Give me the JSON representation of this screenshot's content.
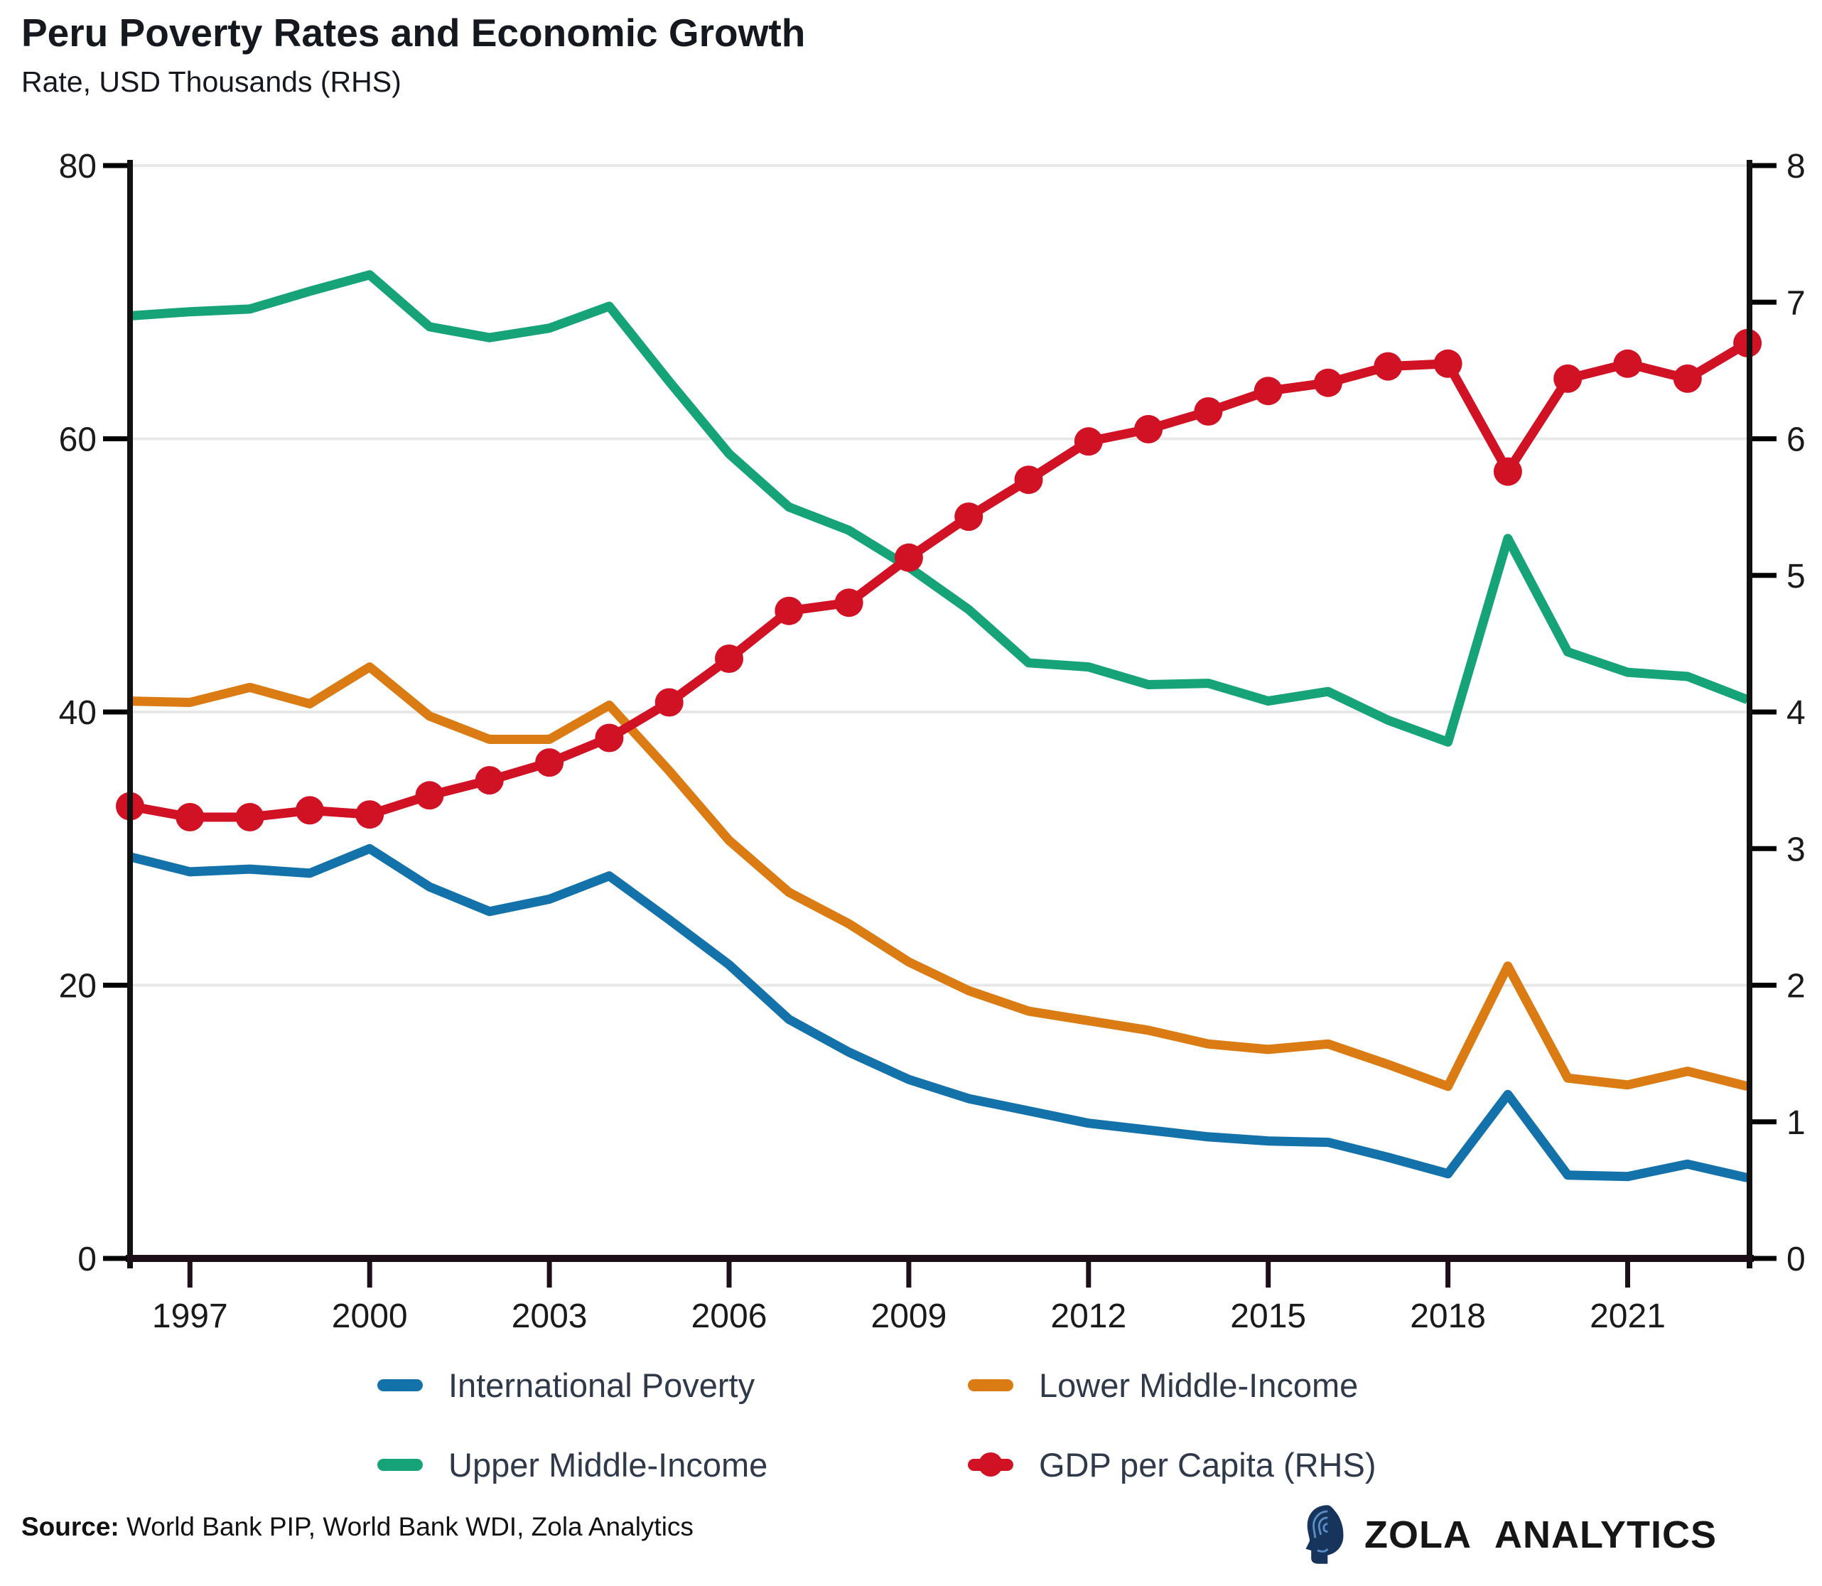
{
  "chart_data": {
    "type": "line",
    "title": "Peru Poverty Rates and Economic Growth",
    "subtitle": "Rate, USD Thousands (RHS)",
    "x": [
      1996,
      1997,
      1998,
      1999,
      2000,
      2001,
      2002,
      2003,
      2004,
      2005,
      2006,
      2007,
      2008,
      2009,
      2010,
      2011,
      2012,
      2013,
      2014,
      2015,
      2016,
      2017,
      2018,
      2019,
      2020,
      2021,
      2022,
      2023
    ],
    "x_ticks": [
      1997,
      2000,
      2003,
      2006,
      2009,
      2012,
      2015,
      2018,
      2021
    ],
    "left_axis": {
      "range": [
        0,
        80
      ],
      "ticks": [
        0,
        20,
        40,
        60,
        80
      ]
    },
    "right_axis": {
      "range": [
        0,
        8
      ],
      "ticks": [
        0,
        1,
        2,
        3,
        4,
        5,
        6,
        7,
        8
      ]
    },
    "grid_values": [
      20,
      40,
      60,
      80
    ],
    "series": [
      {
        "name": "International Poverty",
        "axis": "left",
        "color": "#1472ab",
        "marker": false,
        "values": [
          29.4,
          28.3,
          28.5,
          28.2,
          30.0,
          27.2,
          25.4,
          26.3,
          28.0,
          24.8,
          21.5,
          17.5,
          15.1,
          13.1,
          11.7,
          10.8,
          9.9,
          9.4,
          8.9,
          8.6,
          8.5,
          7.4,
          6.2,
          12.0,
          6.1,
          6.0,
          6.9,
          5.9
        ]
      },
      {
        "name": "Lower Middle-Income",
        "axis": "left",
        "color": "#da7b13",
        "marker": false,
        "values": [
          40.8,
          40.7,
          41.8,
          40.6,
          43.3,
          39.7,
          38.0,
          38.0,
          40.5,
          35.7,
          30.6,
          26.8,
          24.5,
          21.7,
          19.6,
          18.1,
          17.4,
          16.7,
          15.7,
          15.3,
          15.7,
          14.2,
          12.6,
          21.4,
          13.2,
          12.7,
          13.7,
          12.6
        ]
      },
      {
        "name": "Upper Middle-Income",
        "axis": "left",
        "color": "#16a377",
        "marker": false,
        "values": [
          69.0,
          69.3,
          69.5,
          70.8,
          72.0,
          68.2,
          67.4,
          68.1,
          69.7,
          64.2,
          58.9,
          55.0,
          53.3,
          50.6,
          47.5,
          43.6,
          43.3,
          42.0,
          42.1,
          40.8,
          41.5,
          39.4,
          37.8,
          52.7,
          44.4,
          42.9,
          42.6,
          40.9
        ]
      },
      {
        "name": "GDP per Capita (RHS)",
        "axis": "right",
        "color": "#d11224",
        "marker": true,
        "values": [
          3.31,
          3.23,
          3.23,
          3.28,
          3.25,
          3.39,
          3.5,
          3.63,
          3.81,
          4.07,
          4.39,
          4.74,
          4.8,
          5.13,
          5.43,
          5.7,
          5.98,
          6.07,
          6.2,
          6.35,
          6.41,
          6.53,
          6.55,
          5.76,
          6.44,
          6.55,
          6.44,
          6.7
        ]
      }
    ],
    "legend_position": "bottom",
    "grid": "horizontal"
  },
  "legend": {
    "items": [
      {
        "label": "International Poverty",
        "color": "#1472ab",
        "marker": false
      },
      {
        "label": "Lower Middle-Income",
        "color": "#da7b13",
        "marker": false
      },
      {
        "label": "Upper Middle-Income",
        "color": "#16a377",
        "marker": false
      },
      {
        "label": "GDP per Capita (RHS)",
        "color": "#d11224",
        "marker": true
      }
    ]
  },
  "footer": {
    "source_label": "Source:",
    "source_text": " World Bank PIP, World Bank WDI, Zola Analytics",
    "brand": "ZOLA ANALYTICS"
  },
  "colors": {
    "grid": "#e8e8e8",
    "spine_side": "#111111",
    "spine_bottom": "#1c0f18",
    "tick_label": "#1a1a1a",
    "legend_text": "#2f3949"
  }
}
